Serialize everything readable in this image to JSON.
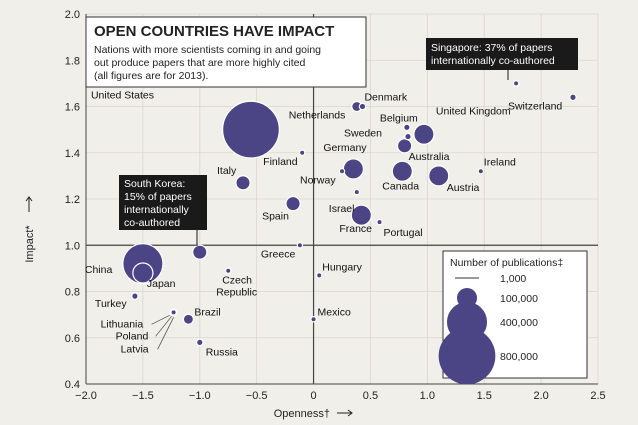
{
  "chart_data": {
    "type": "scatter",
    "title": "OPEN COUNTRIES HAVE IMPACT",
    "subtitle_lines": [
      "Nations with more scientists coming in and going",
      "out produce papers that are more highly cited",
      "(all figures are for 2013)."
    ],
    "xlabel": "Openness†",
    "ylabel": "Impact*",
    "xlim": [
      -2.0,
      2.5
    ],
    "ylim": [
      0.4,
      2.0
    ],
    "xticks": [
      "−2.0",
      "−1.5",
      "−1.0",
      "−0.5",
      "0",
      "0.5",
      "1.0",
      "1.5",
      "2.0",
      "2.5"
    ],
    "yticks": [
      "0.4",
      "0.6",
      "0.8",
      "1.0",
      "1.2",
      "1.4",
      "1.6",
      "1.8",
      "2.0"
    ],
    "grid": true,
    "points": [
      {
        "country": "United States",
        "x": -0.55,
        "y": 1.5,
        "publications": 800000
      },
      {
        "country": "China",
        "x": -1.5,
        "y": 0.92,
        "publications": 400000
      },
      {
        "country": "Japan",
        "x": -1.5,
        "y": 0.88,
        "publications": 100000
      },
      {
        "country": "United Kingdom",
        "x": 0.97,
        "y": 1.48,
        "publications": 100000
      },
      {
        "country": "Germany",
        "x": 0.35,
        "y": 1.33,
        "publications": 100000
      },
      {
        "country": "Austria",
        "x": 1.1,
        "y": 1.3,
        "publications": 100000
      },
      {
        "country": "Canada",
        "x": 0.78,
        "y": 1.32,
        "publications": 100000
      },
      {
        "country": "France",
        "x": 0.42,
        "y": 1.13,
        "publications": 100000
      },
      {
        "country": "Italy",
        "x": -0.62,
        "y": 1.27,
        "publications": 50000
      },
      {
        "country": "Spain",
        "x": -0.18,
        "y": 1.18,
        "publications": 50000
      },
      {
        "country": "South Korea",
        "x": -1.0,
        "y": 0.97,
        "publications": 50000
      },
      {
        "country": "Australia",
        "x": 0.8,
        "y": 1.43,
        "publications": 50000
      },
      {
        "country": "Netherlands",
        "x": 0.38,
        "y": 1.6,
        "publications": 25000
      },
      {
        "country": "Denmark",
        "x": 0.43,
        "y": 1.6,
        "publications": 10000
      },
      {
        "country": "Belgium",
        "x": 0.82,
        "y": 1.51,
        "publications": 10000
      },
      {
        "country": "Sweden",
        "x": 0.83,
        "y": 1.47,
        "publications": 10000
      },
      {
        "country": "Switzerland",
        "x": 2.28,
        "y": 1.64,
        "publications": 10000
      },
      {
        "country": "Singapore",
        "x": 1.78,
        "y": 1.7,
        "publications": 5000
      },
      {
        "country": "Brazil",
        "x": -1.1,
        "y": 0.68,
        "publications": 25000
      },
      {
        "country": "Russia",
        "x": -1.0,
        "y": 0.58,
        "publications": 10000
      },
      {
        "country": "Turkey",
        "x": -1.57,
        "y": 0.78,
        "publications": 10000
      },
      {
        "country": "Lithuania",
        "x": -1.23,
        "y": 0.71,
        "publications": 1000
      },
      {
        "country": "Poland",
        "x": -1.23,
        "y": 0.71,
        "publications": 10000
      },
      {
        "country": "Latvia",
        "x": -1.23,
        "y": 0.71,
        "publications": 1000
      },
      {
        "country": "Finland",
        "x": -0.1,
        "y": 1.4,
        "publications": 1000
      },
      {
        "country": "Norway",
        "x": 0.25,
        "y": 1.32,
        "publications": 1000
      },
      {
        "country": "Israel",
        "x": 0.38,
        "y": 1.23,
        "publications": 1000
      },
      {
        "country": "Ireland",
        "x": 1.47,
        "y": 1.32,
        "publications": 1000
      },
      {
        "country": "Portugal",
        "x": 0.58,
        "y": 1.1,
        "publications": 1000
      },
      {
        "country": "Greece",
        "x": -0.12,
        "y": 1.0,
        "publications": 1000
      },
      {
        "country": "Czech Republic",
        "x": -0.75,
        "y": 0.89,
        "publications": 1000
      },
      {
        "country": "Hungary",
        "x": 0.05,
        "y": 0.87,
        "publications": 1000
      },
      {
        "country": "Mexico",
        "x": 0.0,
        "y": 0.68,
        "publications": 5000
      }
    ],
    "annotations": [
      {
        "id": "singapore",
        "lines": [
          "Singapore: 37% of papers",
          "internationally co-authored"
        ]
      },
      {
        "id": "south-korea",
        "lines": [
          "South Korea:",
          "15% of papers",
          "internationally",
          "co-authored"
        ]
      }
    ],
    "legend": {
      "title": "Number of publications‡",
      "placement": "bottom-right",
      "entries": [
        {
          "label": "1,000",
          "value": 1000
        },
        {
          "label": "100,000",
          "value": 100000
        },
        {
          "label": "400,000",
          "value": 400000
        },
        {
          "label": "800,000",
          "value": 800000
        }
      ]
    },
    "colors": {
      "bubble": "#4b4585",
      "background": "#f1efe9",
      "grid": "#d9d6cf",
      "axis": "#444444",
      "annotation_box": "#1a1a1a"
    }
  }
}
